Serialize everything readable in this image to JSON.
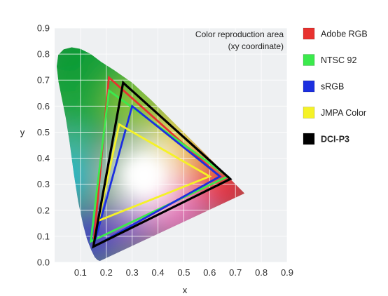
{
  "chart_data": {
    "type": "scatter",
    "title": "",
    "xlabel": "x",
    "ylabel": "y",
    "xlim": [
      0.0,
      0.9
    ],
    "ylim": [
      0.0,
      0.9
    ],
    "x_ticks": [
      "0.1",
      "0.2",
      "0.3",
      "0.4",
      "0.5",
      "0.6",
      "0.7",
      "0.8",
      "0.9"
    ],
    "y_ticks": [
      "0.0",
      "0.1",
      "0.2",
      "0.3",
      "0.4",
      "0.5",
      "0.6",
      "0.7",
      "0.8",
      "0.9"
    ],
    "grid": true,
    "annotation": [
      "Color reproduction area",
      "(xy coordinate)"
    ],
    "legend_position": "right",
    "spectral_locus": [
      [
        0.175,
        0.005
      ],
      [
        0.166,
        0.009
      ],
      [
        0.155,
        0.02
      ],
      [
        0.142,
        0.046
      ],
      [
        0.125,
        0.09
      ],
      [
        0.11,
        0.145
      ],
      [
        0.091,
        0.233
      ],
      [
        0.074,
        0.342
      ],
      [
        0.058,
        0.46
      ],
      [
        0.043,
        0.555
      ],
      [
        0.028,
        0.63
      ],
      [
        0.015,
        0.694
      ],
      [
        0.008,
        0.753
      ],
      [
        0.014,
        0.797
      ],
      [
        0.035,
        0.818
      ],
      [
        0.066,
        0.826
      ],
      [
        0.1,
        0.82
      ],
      [
        0.14,
        0.8
      ],
      [
        0.18,
        0.77
      ],
      [
        0.229,
        0.739
      ],
      [
        0.3,
        0.69
      ],
      [
        0.373,
        0.624
      ],
      [
        0.444,
        0.554
      ],
      [
        0.512,
        0.487
      ],
      [
        0.575,
        0.425
      ],
      [
        0.627,
        0.373
      ],
      [
        0.666,
        0.334
      ],
      [
        0.692,
        0.308
      ],
      [
        0.713,
        0.287
      ],
      [
        0.73,
        0.27
      ],
      [
        0.735,
        0.265
      ]
    ],
    "series": [
      {
        "name": "Adobe RGB",
        "color": "#e8322f",
        "points": [
          [
            0.64,
            0.33
          ],
          [
            0.21,
            0.71
          ],
          [
            0.15,
            0.06
          ]
        ]
      },
      {
        "name": "NTSC 92",
        "color": "#3bea4c",
        "points": [
          [
            0.67,
            0.33
          ],
          [
            0.21,
            0.66
          ],
          [
            0.14,
            0.08
          ]
        ]
      },
      {
        "name": "sRGB",
        "color": "#1c2fe0",
        "points": [
          [
            0.64,
            0.33
          ],
          [
            0.3,
            0.6
          ],
          [
            0.15,
            0.06
          ]
        ]
      },
      {
        "name": "JMPA Color",
        "color": "#f5f227",
        "points": [
          [
            0.6,
            0.33
          ],
          [
            0.25,
            0.53
          ],
          [
            0.17,
            0.16
          ]
        ]
      },
      {
        "name": "DCI-P3",
        "color": "#000000",
        "points": [
          [
            0.68,
            0.32
          ],
          [
            0.265,
            0.69
          ],
          [
            0.15,
            0.06
          ]
        ]
      }
    ]
  }
}
